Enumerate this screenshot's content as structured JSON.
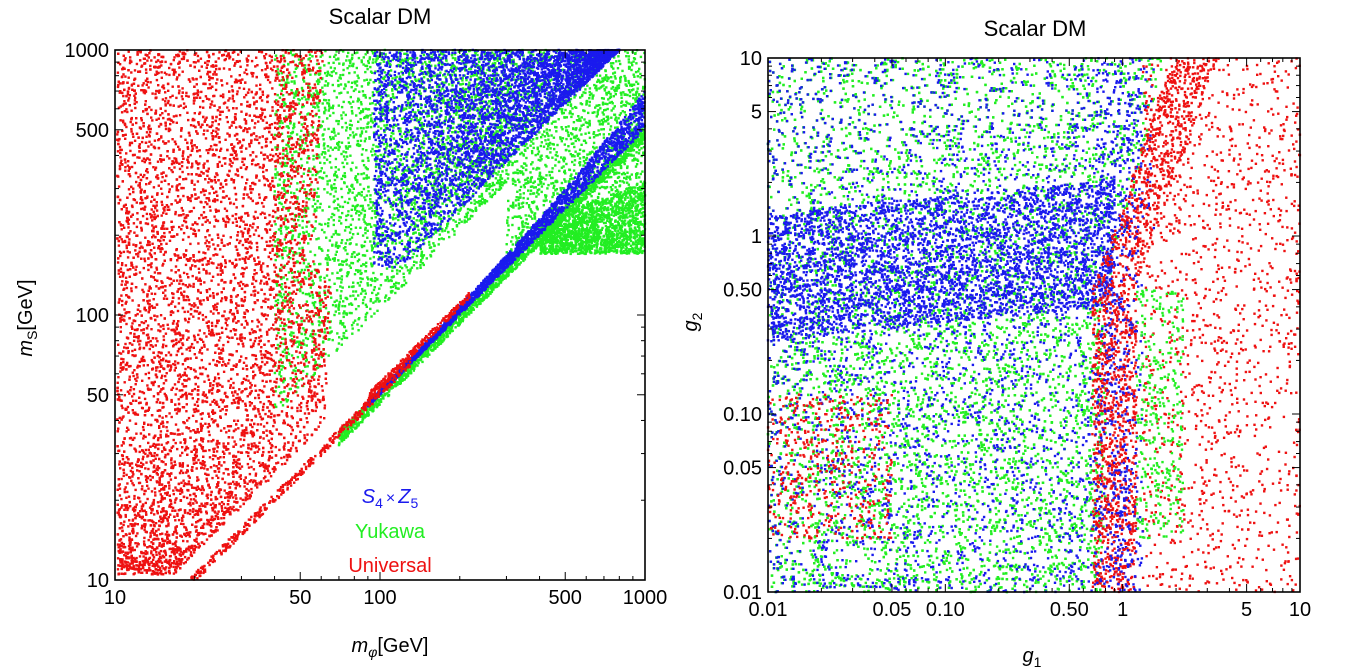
{
  "chart_data": [
    {
      "type": "scatter",
      "title": "Scalar DM",
      "xlabel_main": "m",
      "xlabel_sub": "φ",
      "xlabel_unit": "[GeV]",
      "ylabel_main": "m",
      "ylabel_sub": "S",
      "ylabel_unit": "[GeV]",
      "xscale": "log",
      "yscale": "log",
      "xlim": [
        10,
        1000
      ],
      "ylim": [
        10,
        1000
      ],
      "xticks": [
        {
          "value": 10,
          "label": "10"
        },
        {
          "value": 50,
          "label": "50"
        },
        {
          "value": 100,
          "label": "100"
        },
        {
          "value": 500,
          "label": "500"
        },
        {
          "value": 1000,
          "label": "1000"
        }
      ],
      "yticks": [
        {
          "value": 10,
          "label": "10"
        },
        {
          "value": 50,
          "label": "50"
        },
        {
          "value": 100,
          "label": "100"
        },
        {
          "value": 500,
          "label": "500"
        },
        {
          "value": 1000,
          "label": "1000"
        }
      ],
      "legend": [
        {
          "label_main": "S",
          "label_sub1": "4",
          "label_mid": "×",
          "label_main2": "Z",
          "label_sub2": "5",
          "color": "#1a1aee"
        },
        {
          "label": "Yukawa",
          "color": "#22ee22"
        },
        {
          "label": "Universal",
          "color": "#ee1111"
        }
      ],
      "legend_position": "bottom-center",
      "grid": false,
      "series": [
        {
          "color": "#ee1111",
          "regions": [
            {
              "kind": "band",
              "x_range": [
                10,
                75
              ],
              "y_ratio_range": [
                0.85,
                100
              ],
              "density": "high",
              "note_edge_x": [
                45,
                75
              ]
            },
            {
              "kind": "line",
              "y_over_x": 0.5,
              "x_range": [
                12,
                200
              ]
            }
          ]
        },
        {
          "color": "#22ee22",
          "regions": [
            {
              "kind": "band",
              "x_range": [
                40,
                1000
              ],
              "y_min_ratio": 1.1,
              "y_max": 1000
            },
            {
              "kind": "strip",
              "y_over_x_range": [
                0.47,
                0.55
              ],
              "x_range": [
                70,
                1000
              ]
            }
          ]
        },
        {
          "color": "#1a1aee",
          "regions": [
            {
              "kind": "band",
              "x_range": [
                100,
                1000
              ],
              "y_min_ratio": 1.3,
              "y_max": 1000
            },
            {
              "kind": "strip",
              "y_over_x_range": [
                0.5,
                0.58
              ],
              "x_range": [
                90,
                1000
              ]
            }
          ]
        }
      ]
    },
    {
      "type": "scatter",
      "title": "Scalar DM",
      "xlabel_main": "g",
      "xlabel_sub": "1",
      "ylabel_main": "g",
      "ylabel_sub": "2",
      "xscale": "log",
      "yscale": "log",
      "xlim": [
        0.01,
        10
      ],
      "ylim": [
        0.01,
        10
      ],
      "xticks": [
        {
          "value": 0.01,
          "label": "0.01"
        },
        {
          "value": 0.05,
          "label": "0.05"
        },
        {
          "value": 0.1,
          "label": "0.10"
        },
        {
          "value": 0.5,
          "label": "0.50"
        },
        {
          "value": 1,
          "label": "1"
        },
        {
          "value": 5,
          "label": "5"
        },
        {
          "value": 10,
          "label": "10"
        }
      ],
      "yticks": [
        {
          "value": 0.01,
          "label": "0.01"
        },
        {
          "value": 0.05,
          "label": "0.05"
        },
        {
          "value": 0.1,
          "label": "0.10"
        },
        {
          "value": 0.5,
          "label": "0.50"
        },
        {
          "value": 1,
          "label": "1"
        },
        {
          "value": 5,
          "label": "5"
        },
        {
          "value": 10,
          "label": "10"
        }
      ],
      "grid": false,
      "series": [
        {
          "color": "#22ee22",
          "regions": [
            {
              "kind": "band",
              "x_range": [
                0.01,
                0.9
              ],
              "y_range": [
                0.01,
                10
              ],
              "density": "high"
            }
          ]
        },
        {
          "color": "#1a1aee",
          "regions": [
            {
              "kind": "band",
              "x_range": [
                0.01,
                1.2
              ],
              "y_range": [
                0.01,
                10
              ]
            },
            {
              "kind": "band",
              "x_range": [
                0.01,
                0.6
              ],
              "y_range": [
                0.25,
                1.3
              ],
              "density": "high"
            }
          ]
        },
        {
          "color": "#ee1111",
          "regions": [
            {
              "kind": "band",
              "x_range": [
                0.6,
                2.0
              ],
              "y_range": [
                0.01,
                10
              ],
              "density": "high"
            },
            {
              "kind": "band",
              "x_range": [
                1.5,
                10
              ],
              "y_range": [
                0.01,
                10
              ],
              "density": "low"
            },
            {
              "kind": "band",
              "x_range": [
                0.01,
                0.05
              ],
              "y_range": [
                0.02,
                0.12
              ]
            }
          ]
        }
      ]
    }
  ]
}
